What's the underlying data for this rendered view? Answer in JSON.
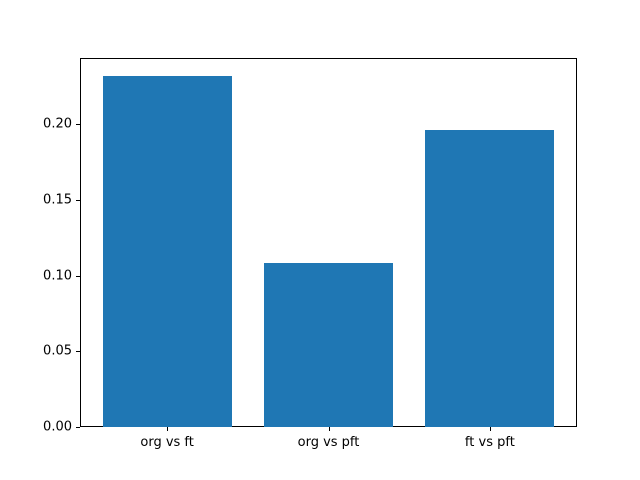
{
  "chart_data": {
    "type": "bar",
    "title": "",
    "xlabel": "",
    "ylabel": "",
    "categories": [
      "org vs ft",
      "org vs pft",
      "ft vs pft"
    ],
    "values": [
      0.232,
      0.108,
      0.196
    ],
    "yticks": [
      0.0,
      0.05,
      0.1,
      0.15,
      0.2
    ],
    "yticklabels": [
      "0.00",
      "0.05",
      "0.10",
      "0.15",
      "0.20"
    ],
    "ylim": [
      0,
      0.2436
    ],
    "xlim": [
      -0.54,
      2.54
    ],
    "bar_width_units": 0.8,
    "bar_color": "#1f77b4",
    "spine_color": "#000000",
    "text_color": "#000000",
    "background_color": "#ffffff",
    "grid": false,
    "legend": "none"
  }
}
